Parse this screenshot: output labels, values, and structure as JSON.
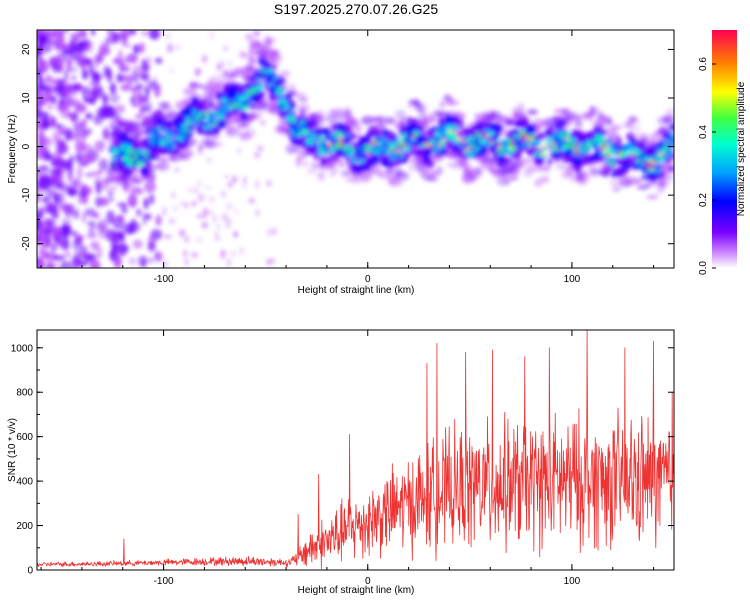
{
  "figure_title": "S197.2025.270.07.26.G25",
  "chart_data": [
    {
      "type": "heatmap",
      "title": "S197.2025.270.07.26.G25",
      "xlabel": "Height of straight line (km)",
      "ylabel": "Frequency (Hz)",
      "xlim": [
        -162,
        150
      ],
      "ylim": [
        -25,
        24
      ],
      "x_ticks": [
        -100,
        0,
        100
      ],
      "x_tick_labels": [
        "-100",
        "0",
        "100"
      ],
      "y_ticks": [
        -20,
        -10,
        0,
        10,
        20
      ],
      "y_tick_labels": [
        "-20",
        "-10",
        "0",
        "10",
        "20"
      ],
      "colorbar": {
        "label": "Normalized spectral amplitude",
        "range": [
          0.0,
          0.7
        ],
        "ticks": [
          0.0,
          0.2,
          0.4,
          0.6
        ],
        "tick_labels": [
          "0.0",
          "0.2",
          "0.4",
          "0.6"
        ],
        "colors": [
          "#ffffff",
          "#b044ff",
          "#6a00ff",
          "#0000ff",
          "#00a0ff",
          "#00ffd0",
          "#40ff40",
          "#ffff00",
          "#ff8000",
          "#ff0040"
        ]
      },
      "ridge": {
        "x": [
          -125,
          -110,
          -95,
          -80,
          -70,
          -60,
          -55,
          -50,
          -45,
          -40,
          -35,
          -30,
          -20,
          -10,
          0,
          10,
          20,
          30,
          40,
          50,
          60,
          70,
          80,
          90,
          100,
          110,
          120,
          130,
          140,
          150
        ],
        "frequency": [
          -3,
          -1,
          3,
          6,
          8,
          10,
          12,
          14,
          12,
          10,
          3,
          2,
          1,
          0,
          -1,
          0,
          1,
          1,
          2,
          1,
          1,
          0.5,
          0.5,
          0.5,
          0.5,
          0,
          -1,
          -2,
          -3,
          0
        ]
      }
    },
    {
      "type": "line",
      "xlabel": "Height of straight line (km)",
      "ylabel": "SNR (10 * v/v)",
      "xlim": [
        -162,
        150
      ],
      "ylim": [
        0,
        1080
      ],
      "x_ticks": [
        -100,
        0,
        100
      ],
      "x_tick_labels": [
        "-100",
        "0",
        "100"
      ],
      "y_ticks": [
        0,
        200,
        400,
        600,
        800,
        1000
      ],
      "y_tick_labels": [
        "0",
        "200",
        "400",
        "600",
        "800",
        "1000"
      ],
      "line_color": "#ee3333",
      "series": [
        {
          "name": "SNR",
          "profile_x": [
            -162,
            -130,
            -120,
            -110,
            -100,
            -80,
            -60,
            -45,
            -38,
            -33,
            -30,
            -20,
            -10,
            0,
            10,
            20,
            30,
            40,
            60,
            80,
            100,
            120,
            150
          ],
          "base": [
            25,
            28,
            30,
            32,
            34,
            38,
            40,
            36,
            34,
            60,
            90,
            130,
            180,
            220,
            260,
            300,
            330,
            360,
            380,
            390,
            400,
            400,
            400
          ],
          "spread": [
            10,
            12,
            12,
            12,
            14,
            18,
            22,
            20,
            18,
            50,
            80,
            120,
            150,
            170,
            190,
            220,
            250,
            270,
            290,
            300,
            300,
            300,
            300
          ],
          "peaks": [
            {
              "x": -119.5,
              "y": 140
            },
            {
              "x": -34,
              "y": 250
            },
            {
              "x": -24,
              "y": 430
            },
            {
              "x": -9,
              "y": 610
            },
            {
              "x": 29,
              "y": 930
            },
            {
              "x": 34,
              "y": 1020
            },
            {
              "x": 48,
              "y": 980
            },
            {
              "x": 61,
              "y": 990
            },
            {
              "x": 77,
              "y": 960
            },
            {
              "x": 89,
              "y": 1000
            },
            {
              "x": 107.5,
              "y": 1085
            },
            {
              "x": 126,
              "y": 1000
            },
            {
              "x": 140,
              "y": 1030
            },
            {
              "x": 149,
              "y": 800
            }
          ]
        }
      ]
    }
  ]
}
